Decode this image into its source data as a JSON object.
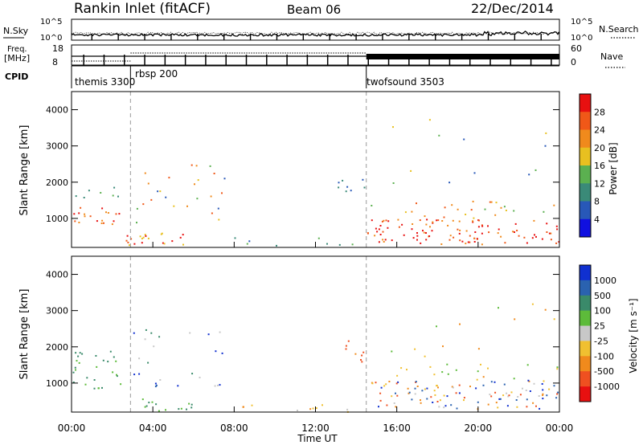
{
  "header": {
    "station": "Rankin Inlet (fitACF)",
    "beam": "Beam 06",
    "date": "22/Dec/2014"
  },
  "top_panels": {
    "nsky_label": "N.Sky",
    "nsearch_label": "N.Search",
    "nsky_ticks": [
      "10^5",
      "10^0"
    ],
    "nsearch_ticks": [
      "10^5",
      "10^0"
    ],
    "freq_label_1": "Freq.",
    "freq_label_2": "[MHz]",
    "freq_ticks": [
      "18",
      "8"
    ],
    "nave_label": "Nave",
    "nave_ticks": [
      "60",
      "0"
    ],
    "cpid_label": "CPID",
    "cpid_segments": [
      {
        "name": "themis 3300",
        "start_h": 0.0,
        "end_h": 2.9
      },
      {
        "name": "rbsp 200",
        "start_h": 2.9,
        "end_h": 14.5
      },
      {
        "name": "twofsound 3503",
        "start_h": 14.5,
        "end_h": 24.0
      }
    ]
  },
  "chart_data": [
    {
      "type": "heatmap",
      "name": "power",
      "ylabel": "Slant Range [km]",
      "yticks": [
        "1000",
        "2000",
        "3000",
        "4000"
      ],
      "ylim": [
        200,
        4500
      ],
      "xlim_hours": [
        0,
        24
      ],
      "colorbar_label": "Power [dB]",
      "colorbar_ticks": [
        "4",
        "8",
        "12",
        "16",
        "20",
        "24",
        "28"
      ],
      "colorbar_colors": [
        "#1010e0",
        "#2858b8",
        "#3a8a78",
        "#5bb050",
        "#e8c020",
        "#f08a1c",
        "#f05818",
        "#e81010"
      ]
    },
    {
      "type": "heatmap",
      "name": "velocity",
      "ylabel": "Slant Range [km]",
      "yticks": [
        "1000",
        "2000",
        "3000",
        "4000"
      ],
      "ylim": [
        200,
        4500
      ],
      "xlim_hours": [
        0,
        24
      ],
      "colorbar_label": "Velocity [m s⁻¹]",
      "colorbar_ticks": [
        "1000",
        "500",
        "100",
        "25",
        "-25",
        "-100",
        "-500",
        "-1000"
      ],
      "colorbar_colors": [
        "#1030d0",
        "#2a62b0",
        "#3a8a6a",
        "#5dbb3a",
        "#c8c8c8",
        "#f0c030",
        "#f08a1c",
        "#ef5020",
        "#e81010"
      ]
    }
  ],
  "xaxis": {
    "label": "Time UT",
    "ticks": [
      "00:00",
      "04:00",
      "08:00",
      "12:00",
      "16:00",
      "20:00",
      "00:00"
    ]
  },
  "colors": {
    "frame": "#000000",
    "dashed": "#9a9a9a"
  }
}
